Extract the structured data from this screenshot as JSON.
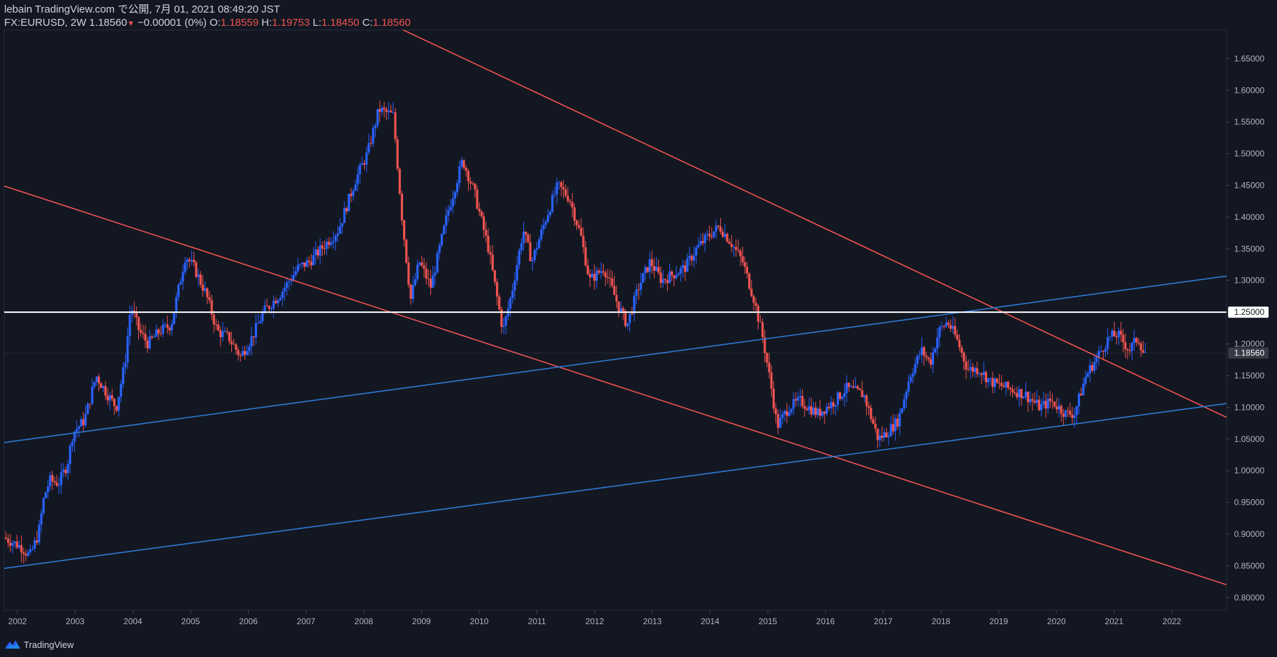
{
  "header": {
    "publisher_line": "lebain TradingView.com で公開, 7月 01, 2021 08:49:20 JST",
    "symbol": "FX:EURUSD, 2W",
    "last": "1.18560",
    "change": "−0.00001 (0%)",
    "o_label": "O:",
    "o_value": "1.18559",
    "h_label": "H:",
    "h_value": "1.19753",
    "l_label": "L:",
    "l_value": "1.18450",
    "c_label": "C:",
    "c_value": "1.18560"
  },
  "footer": {
    "brand": "TradingView"
  },
  "colors": {
    "background": "#131722",
    "up": "#2962ff",
    "down": "#ef5350",
    "resistance_line": "#ef5350",
    "support_line": "#2d7ad6",
    "level_line": "#ffffff",
    "axis_text": "#b2b5be"
  },
  "chart_data": {
    "type": "candlestick",
    "interval": "2W",
    "ylim": [
      0.78,
      1.695
    ],
    "xlim": [
      2001.77,
      2022.95
    ],
    "grid": false,
    "x_ticks": [
      "2002",
      "2003",
      "2004",
      "2005",
      "2006",
      "2007",
      "2008",
      "2009",
      "2010",
      "2011",
      "2012",
      "2013",
      "2014",
      "2015",
      "2016",
      "2017",
      "2018",
      "2019",
      "2020",
      "2021",
      "2022"
    ],
    "y_ticks": [
      "1.65000",
      "1.60000",
      "1.55000",
      "1.50000",
      "1.45000",
      "1.40000",
      "1.35000",
      "1.30000",
      "1.25000",
      "1.20000",
      "1.15000",
      "1.10000",
      "1.05000",
      "1.00000",
      "0.95000",
      "0.90000",
      "0.85000",
      "0.80000"
    ],
    "current_price": {
      "value": 1.1856,
      "label": "1.18560"
    },
    "price_path": [
      [
        2001.8,
        0.895
      ],
      [
        2002.1,
        0.88
      ],
      [
        2002.25,
        0.865
      ],
      [
        2002.4,
        0.9
      ],
      [
        2002.5,
        0.96
      ],
      [
        2002.6,
        0.985
      ],
      [
        2002.75,
        0.98
      ],
      [
        2002.9,
        1.01
      ],
      [
        2003.0,
        1.06
      ],
      [
        2003.2,
        1.08
      ],
      [
        2003.4,
        1.15
      ],
      [
        2003.6,
        1.12
      ],
      [
        2003.75,
        1.1
      ],
      [
        2003.9,
        1.17
      ],
      [
        2004.0,
        1.26
      ],
      [
        2004.15,
        1.22
      ],
      [
        2004.3,
        1.2
      ],
      [
        2004.5,
        1.22
      ],
      [
        2004.7,
        1.23
      ],
      [
        2004.95,
        1.34
      ],
      [
        2005.1,
        1.32
      ],
      [
        2005.3,
        1.28
      ],
      [
        2005.5,
        1.22
      ],
      [
        2005.7,
        1.21
      ],
      [
        2005.9,
        1.18
      ],
      [
        2006.1,
        1.21
      ],
      [
        2006.3,
        1.25
      ],
      [
        2006.6,
        1.28
      ],
      [
        2006.9,
        1.32
      ],
      [
        2007.1,
        1.33
      ],
      [
        2007.4,
        1.36
      ],
      [
        2007.6,
        1.38
      ],
      [
        2007.9,
        1.46
      ],
      [
        2008.1,
        1.5
      ],
      [
        2008.3,
        1.57
      ],
      [
        2008.55,
        1.56
      ],
      [
        2008.7,
        1.4
      ],
      [
        2008.85,
        1.27
      ],
      [
        2009.0,
        1.33
      ],
      [
        2009.2,
        1.29
      ],
      [
        2009.5,
        1.41
      ],
      [
        2009.75,
        1.49
      ],
      [
        2009.95,
        1.44
      ],
      [
        2010.2,
        1.35
      ],
      [
        2010.45,
        1.22
      ],
      [
        2010.6,
        1.28
      ],
      [
        2010.8,
        1.38
      ],
      [
        2010.95,
        1.33
      ],
      [
        2011.2,
        1.4
      ],
      [
        2011.4,
        1.45
      ],
      [
        2011.6,
        1.43
      ],
      [
        2011.8,
        1.37
      ],
      [
        2011.95,
        1.3
      ],
      [
        2012.2,
        1.32
      ],
      [
        2012.45,
        1.26
      ],
      [
        2012.6,
        1.23
      ],
      [
        2012.8,
        1.29
      ],
      [
        2013.0,
        1.33
      ],
      [
        2013.2,
        1.3
      ],
      [
        2013.4,
        1.31
      ],
      [
        2013.6,
        1.32
      ],
      [
        2013.8,
        1.35
      ],
      [
        2014.0,
        1.37
      ],
      [
        2014.2,
        1.385
      ],
      [
        2014.4,
        1.36
      ],
      [
        2014.6,
        1.33
      ],
      [
        2014.8,
        1.27
      ],
      [
        2014.95,
        1.21
      ],
      [
        2015.1,
        1.13
      ],
      [
        2015.2,
        1.07
      ],
      [
        2015.4,
        1.1
      ],
      [
        2015.6,
        1.11
      ],
      [
        2015.9,
        1.09
      ],
      [
        2016.2,
        1.11
      ],
      [
        2016.4,
        1.13
      ],
      [
        2016.7,
        1.12
      ],
      [
        2016.95,
        1.05
      ],
      [
        2017.1,
        1.06
      ],
      [
        2017.3,
        1.08
      ],
      [
        2017.5,
        1.15
      ],
      [
        2017.7,
        1.19
      ],
      [
        2017.85,
        1.17
      ],
      [
        2018.0,
        1.22
      ],
      [
        2018.15,
        1.235
      ],
      [
        2018.3,
        1.21
      ],
      [
        2018.5,
        1.16
      ],
      [
        2018.7,
        1.16
      ],
      [
        2018.9,
        1.14
      ],
      [
        2019.2,
        1.13
      ],
      [
        2019.5,
        1.12
      ],
      [
        2019.75,
        1.1
      ],
      [
        2019.95,
        1.11
      ],
      [
        2020.2,
        1.09
      ],
      [
        2020.35,
        1.09
      ],
      [
        2020.55,
        1.15
      ],
      [
        2020.75,
        1.18
      ],
      [
        2020.95,
        1.21
      ],
      [
        2021.1,
        1.215
      ],
      [
        2021.3,
        1.19
      ],
      [
        2021.45,
        1.21
      ],
      [
        2021.55,
        1.186
      ]
    ],
    "drawings": [
      {
        "name": "upper-resistance-line",
        "color": "resistance_line",
        "from": [
          2006.0,
          1.81
        ],
        "to": [
          2022.95,
          1.084
        ]
      },
      {
        "name": "lower-resistance-line",
        "color": "resistance_line",
        "from": [
          2001.77,
          1.449
        ],
        "to": [
          2022.95,
          0.82
        ]
      },
      {
        "name": "upper-support-line",
        "color": "support_line",
        "from": [
          2001.77,
          1.0445
        ],
        "to": [
          2022.95,
          1.307
        ]
      },
      {
        "name": "lower-support-line",
        "color": "support_line",
        "from": [
          2001.77,
          0.846
        ],
        "to": [
          2022.95,
          1.106
        ]
      },
      {
        "name": "horizontal-level-line",
        "color": "level_line",
        "from": [
          2001.77,
          1.25
        ],
        "to": [
          2022.95,
          1.25
        ],
        "label": "1.25000"
      }
    ]
  }
}
